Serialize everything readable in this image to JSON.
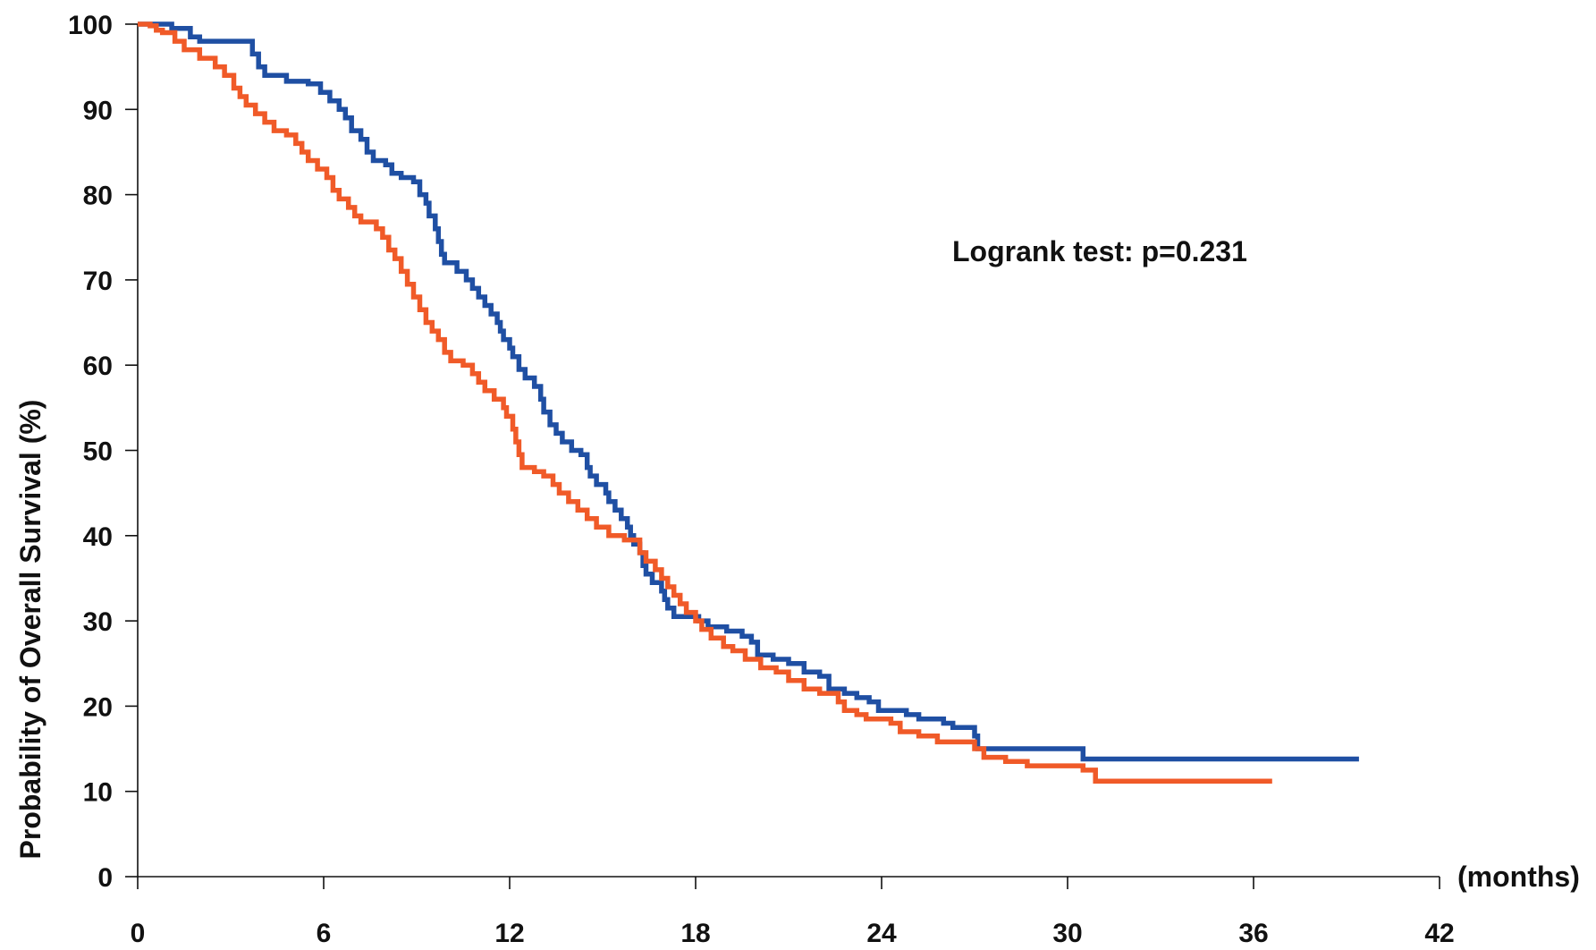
{
  "chart_data": {
    "type": "line",
    "step": true,
    "title": "",
    "xlabel": "(months)",
    "ylabel": "Probability of Overall Survival (%)",
    "xlim": [
      0,
      42
    ],
    "ylim": [
      0,
      100
    ],
    "xticks": [
      0,
      6,
      12,
      18,
      24,
      30,
      36,
      42
    ],
    "yticks": [
      0,
      10,
      20,
      30,
      40,
      50,
      60,
      70,
      80,
      90,
      100
    ],
    "grid": false,
    "annotation": "Logrank test: p=0.231",
    "series": [
      {
        "color": "#1f4fa3",
        "points": [
          [
            0,
            100
          ],
          [
            0.9,
            100
          ],
          [
            1.1,
            99.5
          ],
          [
            1.5,
            99.5
          ],
          [
            1.7,
            98.5
          ],
          [
            2.0,
            98.0
          ],
          [
            3.5,
            98.0
          ],
          [
            3.7,
            96.5
          ],
          [
            3.9,
            95.0
          ],
          [
            4.1,
            94.0
          ],
          [
            4.6,
            94.0
          ],
          [
            4.8,
            93.3
          ],
          [
            5.5,
            93.0
          ],
          [
            5.9,
            92.0
          ],
          [
            6.2,
            91.0
          ],
          [
            6.5,
            90.0
          ],
          [
            6.7,
            89.0
          ],
          [
            6.9,
            87.5
          ],
          [
            7.2,
            86.5
          ],
          [
            7.4,
            85.0
          ],
          [
            7.6,
            84.0
          ],
          [
            8.0,
            83.5
          ],
          [
            8.2,
            82.5
          ],
          [
            8.5,
            82.0
          ],
          [
            8.9,
            81.5
          ],
          [
            9.1,
            80.0
          ],
          [
            9.3,
            79.0
          ],
          [
            9.4,
            77.5
          ],
          [
            9.6,
            76.0
          ],
          [
            9.7,
            74.5
          ],
          [
            9.8,
            73.0
          ],
          [
            9.9,
            72.0
          ],
          [
            10.3,
            71.0
          ],
          [
            10.6,
            70.0
          ],
          [
            10.8,
            69.0
          ],
          [
            11.0,
            68.0
          ],
          [
            11.2,
            67.0
          ],
          [
            11.4,
            66.0
          ],
          [
            11.6,
            65.0
          ],
          [
            11.7,
            64.0
          ],
          [
            11.8,
            63.0
          ],
          [
            12.0,
            62.0
          ],
          [
            12.1,
            61.0
          ],
          [
            12.3,
            59.5
          ],
          [
            12.5,
            58.5
          ],
          [
            12.8,
            57.5
          ],
          [
            13.0,
            56.0
          ],
          [
            13.1,
            54.5
          ],
          [
            13.3,
            53.0
          ],
          [
            13.5,
            52.0
          ],
          [
            13.7,
            51.0
          ],
          [
            14.0,
            50.0
          ],
          [
            14.3,
            49.5
          ],
          [
            14.5,
            48.0
          ],
          [
            14.6,
            47.0
          ],
          [
            14.8,
            46.0
          ],
          [
            15.1,
            45.0
          ],
          [
            15.2,
            44.0
          ],
          [
            15.4,
            43.0
          ],
          [
            15.6,
            42.0
          ],
          [
            15.8,
            41.0
          ],
          [
            15.9,
            40.0
          ],
          [
            16.0,
            39.0
          ],
          [
            16.2,
            38.0
          ],
          [
            16.3,
            36.5
          ],
          [
            16.4,
            35.5
          ],
          [
            16.6,
            34.5
          ],
          [
            16.9,
            33.5
          ],
          [
            17.0,
            32.5
          ],
          [
            17.1,
            31.5
          ],
          [
            17.3,
            30.5
          ],
          [
            18.1,
            30.0
          ],
          [
            18.4,
            29.3
          ],
          [
            19.0,
            28.8
          ],
          [
            19.5,
            28.2
          ],
          [
            19.8,
            27.5
          ],
          [
            20.0,
            26.0
          ],
          [
            20.5,
            25.5
          ],
          [
            21.0,
            25.0
          ],
          [
            21.5,
            24.0
          ],
          [
            22.0,
            23.5
          ],
          [
            22.3,
            22.0
          ],
          [
            22.8,
            21.5
          ],
          [
            23.2,
            21.0
          ],
          [
            23.6,
            20.5
          ],
          [
            23.9,
            19.5
          ],
          [
            24.8,
            19.0
          ],
          [
            25.2,
            18.5
          ],
          [
            26.0,
            18.0
          ],
          [
            26.3,
            17.5
          ],
          [
            27.0,
            16.5
          ],
          [
            27.1,
            15.0
          ],
          [
            30.4,
            15.0
          ],
          [
            30.5,
            13.8
          ],
          [
            39.4,
            13.8
          ]
        ]
      },
      {
        "color": "#f05a28",
        "points": [
          [
            0,
            100
          ],
          [
            0.4,
            99.8
          ],
          [
            0.6,
            99.3
          ],
          [
            0.8,
            99.0
          ],
          [
            1.2,
            98.0
          ],
          [
            1.5,
            97.0
          ],
          [
            2.0,
            96.0
          ],
          [
            2.5,
            95.0
          ],
          [
            2.8,
            94.0
          ],
          [
            3.1,
            92.5
          ],
          [
            3.3,
            91.5
          ],
          [
            3.5,
            90.5
          ],
          [
            3.8,
            89.5
          ],
          [
            4.1,
            88.5
          ],
          [
            4.4,
            87.5
          ],
          [
            4.8,
            87.0
          ],
          [
            5.1,
            86.0
          ],
          [
            5.3,
            85.0
          ],
          [
            5.5,
            84.0
          ],
          [
            5.8,
            83.0
          ],
          [
            6.1,
            82.0
          ],
          [
            6.3,
            80.5
          ],
          [
            6.5,
            79.5
          ],
          [
            6.8,
            78.5
          ],
          [
            7.0,
            77.5
          ],
          [
            7.2,
            76.8
          ],
          [
            7.7,
            76.0
          ],
          [
            7.9,
            75.0
          ],
          [
            8.1,
            73.5
          ],
          [
            8.3,
            72.5
          ],
          [
            8.5,
            71.0
          ],
          [
            8.7,
            69.5
          ],
          [
            8.9,
            68.0
          ],
          [
            9.1,
            66.5
          ],
          [
            9.3,
            65.0
          ],
          [
            9.5,
            64.0
          ],
          [
            9.7,
            63.0
          ],
          [
            9.9,
            61.5
          ],
          [
            10.1,
            60.5
          ],
          [
            10.5,
            60.0
          ],
          [
            10.8,
            59.0
          ],
          [
            11.0,
            58.0
          ],
          [
            11.2,
            57.0
          ],
          [
            11.5,
            56.0
          ],
          [
            11.8,
            55.0
          ],
          [
            11.9,
            54.0
          ],
          [
            12.1,
            52.5
          ],
          [
            12.2,
            51.0
          ],
          [
            12.3,
            49.5
          ],
          [
            12.4,
            48.0
          ],
          [
            12.8,
            47.5
          ],
          [
            13.1,
            47.0
          ],
          [
            13.4,
            46.0
          ],
          [
            13.6,
            45.0
          ],
          [
            13.9,
            44.0
          ],
          [
            14.2,
            43.0
          ],
          [
            14.5,
            42.0
          ],
          [
            14.8,
            41.0
          ],
          [
            15.2,
            40.0
          ],
          [
            15.7,
            39.5
          ],
          [
            16.2,
            38.0
          ],
          [
            16.4,
            37.0
          ],
          [
            16.7,
            36.0
          ],
          [
            16.9,
            35.0
          ],
          [
            17.1,
            34.0
          ],
          [
            17.3,
            33.0
          ],
          [
            17.5,
            32.0
          ],
          [
            17.7,
            31.0
          ],
          [
            18.0,
            30.0
          ],
          [
            18.2,
            29.0
          ],
          [
            18.5,
            28.0
          ],
          [
            18.9,
            27.0
          ],
          [
            19.2,
            26.5
          ],
          [
            19.6,
            25.5
          ],
          [
            20.1,
            24.5
          ],
          [
            20.6,
            24.0
          ],
          [
            21.0,
            23.0
          ],
          [
            21.5,
            22.0
          ],
          [
            22.0,
            21.5
          ],
          [
            22.6,
            20.5
          ],
          [
            22.8,
            19.5
          ],
          [
            23.2,
            19.0
          ],
          [
            23.5,
            18.5
          ],
          [
            24.3,
            18.0
          ],
          [
            24.6,
            17.0
          ],
          [
            25.2,
            16.5
          ],
          [
            25.8,
            15.8
          ],
          [
            27.0,
            15.0
          ],
          [
            27.3,
            14.0
          ],
          [
            28.0,
            13.5
          ],
          [
            28.7,
            13.0
          ],
          [
            30.5,
            12.5
          ],
          [
            30.9,
            11.2
          ],
          [
            36.6,
            11.2
          ]
        ]
      }
    ]
  }
}
